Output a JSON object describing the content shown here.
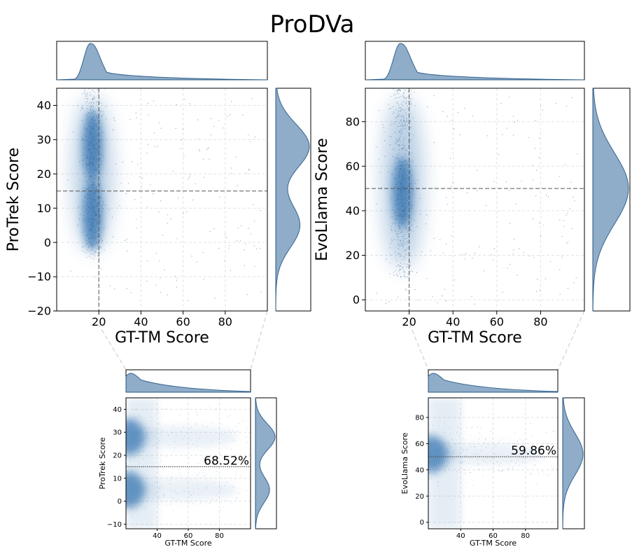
{
  "figure": {
    "title": "ProDVa"
  },
  "colors": {
    "density": "#2f6fae",
    "kde_fill": "#8aa8c6",
    "kde_line": "#2b5d8a",
    "threshold": "#555555",
    "zoom_line": "#c8c8c8"
  },
  "chart_data": [
    {
      "id": "protrek-main",
      "type": "scatter",
      "xlabel": "GT-TM Score",
      "ylabel": "ProTrek Score",
      "xlim": [
        0,
        100
      ],
      "ylim": [
        -20,
        45
      ],
      "xticks": [
        "20",
        "40",
        "60",
        "80"
      ],
      "yticks": [
        "−20",
        "−10",
        "0",
        "10",
        "20",
        "30",
        "40"
      ],
      "grid": true,
      "threshold_x": 20,
      "threshold_y": 15,
      "points_summary": {
        "x_center": 17,
        "x_spread": 3,
        "y_range": [
          -5,
          45
        ],
        "y_modes": [
          28,
          8
        ]
      },
      "marginal_x": {
        "type": "kde",
        "peak": 16
      },
      "marginal_y": {
        "type": "kde",
        "peaks": [
          28,
          5
        ]
      }
    },
    {
      "id": "evollama-main",
      "type": "scatter",
      "xlabel": "GT-TM Score",
      "ylabel": "EvoLlama Score",
      "xlim": [
        0,
        100
      ],
      "ylim": [
        -5,
        95
      ],
      "xticks": [
        "20",
        "40",
        "60",
        "80"
      ],
      "yticks": [
        "0",
        "20",
        "40",
        "60",
        "80"
      ],
      "grid": true,
      "threshold_x": 20,
      "threshold_y": 50,
      "points_summary": {
        "x_center": 17,
        "x_spread": 3,
        "y_range": [
          10,
          95
        ],
        "y_modes": [
          48
        ]
      },
      "marginal_x": {
        "type": "kde",
        "peak": 16
      },
      "marginal_y": {
        "type": "kde",
        "peaks": [
          50
        ]
      }
    },
    {
      "id": "protrek-zoom",
      "type": "scatter",
      "xlabel": "GT-TM Score",
      "ylabel": "ProTrek Score",
      "xlim": [
        20,
        100
      ],
      "ylim": [
        -12,
        45
      ],
      "xticks": [
        "40",
        "60",
        "80"
      ],
      "yticks": [
        "−10",
        "0",
        "10",
        "20",
        "30",
        "40"
      ],
      "grid": true,
      "threshold_y": 15,
      "annotation": "68.52%",
      "points_summary": {
        "y_modes": [
          28,
          5
        ]
      },
      "marginal_x": {
        "type": "kde",
        "peak": 22
      },
      "marginal_y": {
        "type": "kde",
        "peaks": [
          28,
          5
        ]
      }
    },
    {
      "id": "evollama-zoom",
      "type": "scatter",
      "xlabel": "GT-TM Score",
      "ylabel": "EvoLlama Score",
      "xlim": [
        20,
        100
      ],
      "ylim": [
        -5,
        95
      ],
      "xticks": [
        "40",
        "60",
        "80"
      ],
      "yticks": [
        "0",
        "20",
        "40",
        "60",
        "80"
      ],
      "grid": true,
      "threshold_y": 50,
      "annotation": "59.86%",
      "points_summary": {
        "y_modes": [
          52
        ]
      },
      "marginal_x": {
        "type": "kde",
        "peak": 22
      },
      "marginal_y": {
        "type": "kde",
        "peaks": [
          52
        ]
      }
    }
  ]
}
